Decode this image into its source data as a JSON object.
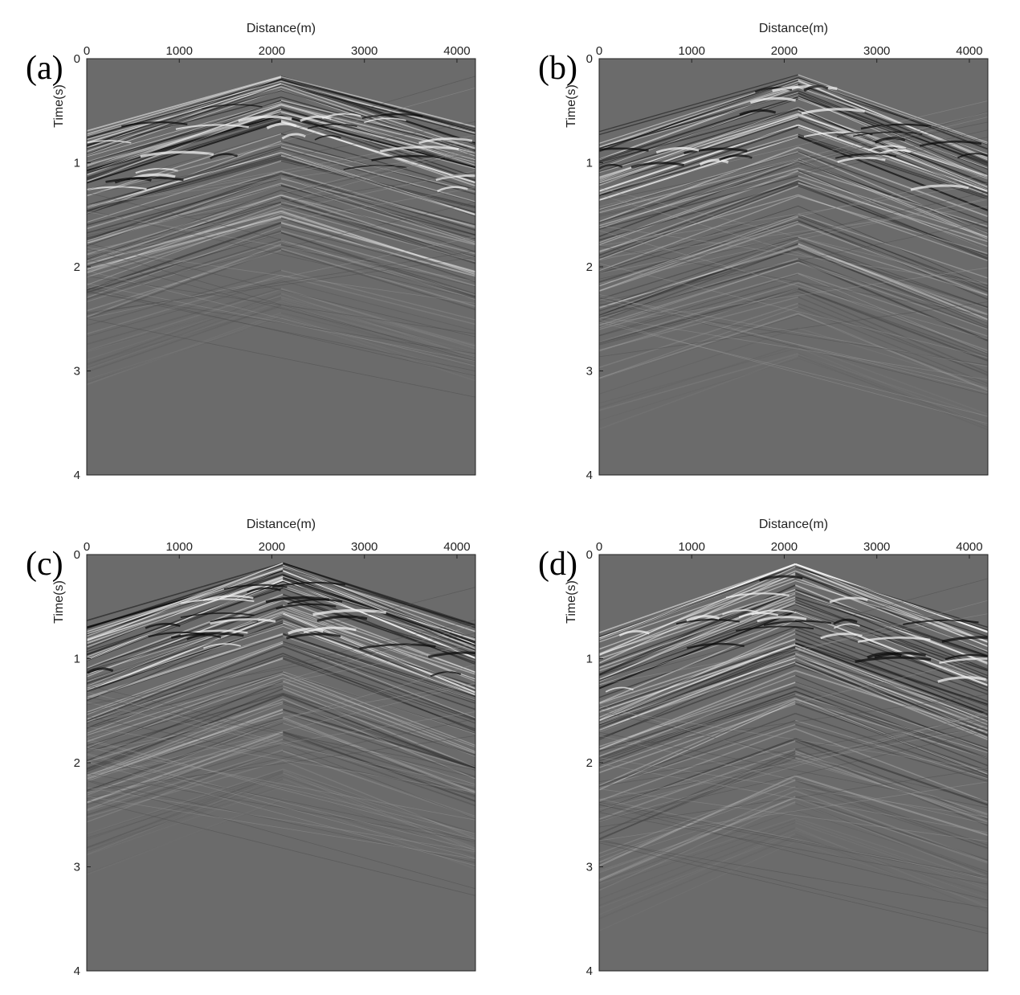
{
  "figure": {
    "panels": [
      {
        "label": "(a)"
      },
      {
        "label": "(b)"
      },
      {
        "label": "(c)"
      },
      {
        "label": "(d)"
      }
    ]
  },
  "chart_data": [
    {
      "type": "heatmap",
      "panel_label": "(a)",
      "xlabel": "Distance(m)",
      "ylabel": "Time(s)",
      "x_ticks": [
        0,
        1000,
        2000,
        3000,
        4000
      ],
      "y_ticks": [
        0,
        1,
        2,
        3,
        4
      ],
      "xlim": [
        0,
        4200
      ],
      "ylim": [
        0,
        4
      ],
      "y_reversed": true,
      "x_axis_position": "top",
      "colormap": "grayscale",
      "background_color": "#6b6b6b",
      "apex_distance_m": 2100,
      "apex_time_s": 0.17,
      "left_edge_first_arrival_s": 0.75,
      "right_edge_first_arrival_s": 0.7,
      "signal_fade_time_s": 2.5
    },
    {
      "type": "heatmap",
      "panel_label": "(b)",
      "xlabel": "Distance(m)",
      "ylabel": "Time(s)",
      "x_ticks": [
        0,
        1000,
        2000,
        3000,
        4000
      ],
      "y_ticks": [
        0,
        1,
        2,
        3,
        4
      ],
      "xlim": [
        0,
        4200
      ],
      "ylim": [
        0,
        4
      ],
      "y_reversed": true,
      "x_axis_position": "top",
      "colormap": "grayscale",
      "background_color": "#6b6b6b",
      "apex_distance_m": 2150,
      "apex_time_s": 0.15,
      "left_edge_first_arrival_s": 0.75,
      "right_edge_first_arrival_s": 0.8,
      "signal_fade_time_s": 2.9
    },
    {
      "type": "heatmap",
      "panel_label": "(c)",
      "xlabel": "Distance(m)",
      "ylabel": "Time(s)",
      "x_ticks": [
        0,
        1000,
        2000,
        3000,
        4000
      ],
      "y_ticks": [
        0,
        1,
        2,
        3,
        4
      ],
      "xlim": [
        0,
        4200
      ],
      "ylim": [
        0,
        4
      ],
      "y_reversed": true,
      "x_axis_position": "top",
      "colormap": "grayscale",
      "background_color": "#6b6b6b",
      "apex_distance_m": 2120,
      "apex_time_s": 0.08,
      "left_edge_first_arrival_s": 0.72,
      "right_edge_first_arrival_s": 0.72,
      "signal_fade_time_s": 2.4
    },
    {
      "type": "heatmap",
      "panel_label": "(d)",
      "xlabel": "Distance(m)",
      "ylabel": "Time(s)",
      "x_ticks": [
        0,
        1000,
        2000,
        3000,
        4000
      ],
      "y_ticks": [
        0,
        1,
        2,
        3,
        4
      ],
      "xlim": [
        0,
        4200
      ],
      "ylim": [
        0,
        4
      ],
      "y_reversed": true,
      "x_axis_position": "top",
      "colormap": "grayscale",
      "background_color": "#6b6b6b",
      "apex_distance_m": 2120,
      "apex_time_s": 0.08,
      "left_edge_first_arrival_s": 0.8,
      "right_edge_first_arrival_s": 0.72,
      "signal_fade_time_s": 2.8
    }
  ]
}
